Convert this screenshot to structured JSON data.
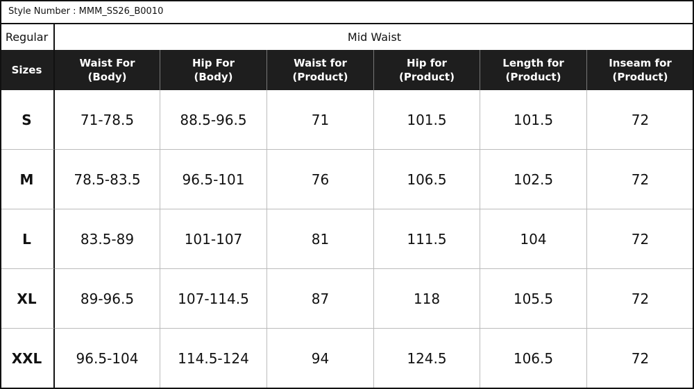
{
  "style_number": "Style Number : MMM_SS26_B0010",
  "fit": "Regular",
  "rise": "Mid Waist",
  "table": {
    "headers": [
      [
        "Sizes"
      ],
      [
        "Waist For",
        "(Body)"
      ],
      [
        "Hip For",
        "(Body)"
      ],
      [
        "Waist for",
        "(Product)"
      ],
      [
        "Hip for",
        "(Product)"
      ],
      [
        "Length for",
        "(Product)"
      ],
      [
        "Inseam for",
        "(Product)"
      ]
    ],
    "rows": [
      [
        "S",
        "71-78.5",
        "88.5-96.5",
        "71",
        "101.5",
        "101.5",
        "72"
      ],
      [
        "M",
        "78.5-83.5",
        "96.5-101",
        "76",
        "106.5",
        "102.5",
        "72"
      ],
      [
        "L",
        "83.5-89",
        "101-107",
        "81",
        "111.5",
        "104",
        "72"
      ],
      [
        "XL",
        "89-96.5",
        "107-114.5",
        "87",
        "118",
        "105.5",
        "72"
      ],
      [
        "XXL",
        "96.5-104",
        "114.5-124",
        "94",
        "124.5",
        "106.5",
        "72"
      ]
    ]
  }
}
